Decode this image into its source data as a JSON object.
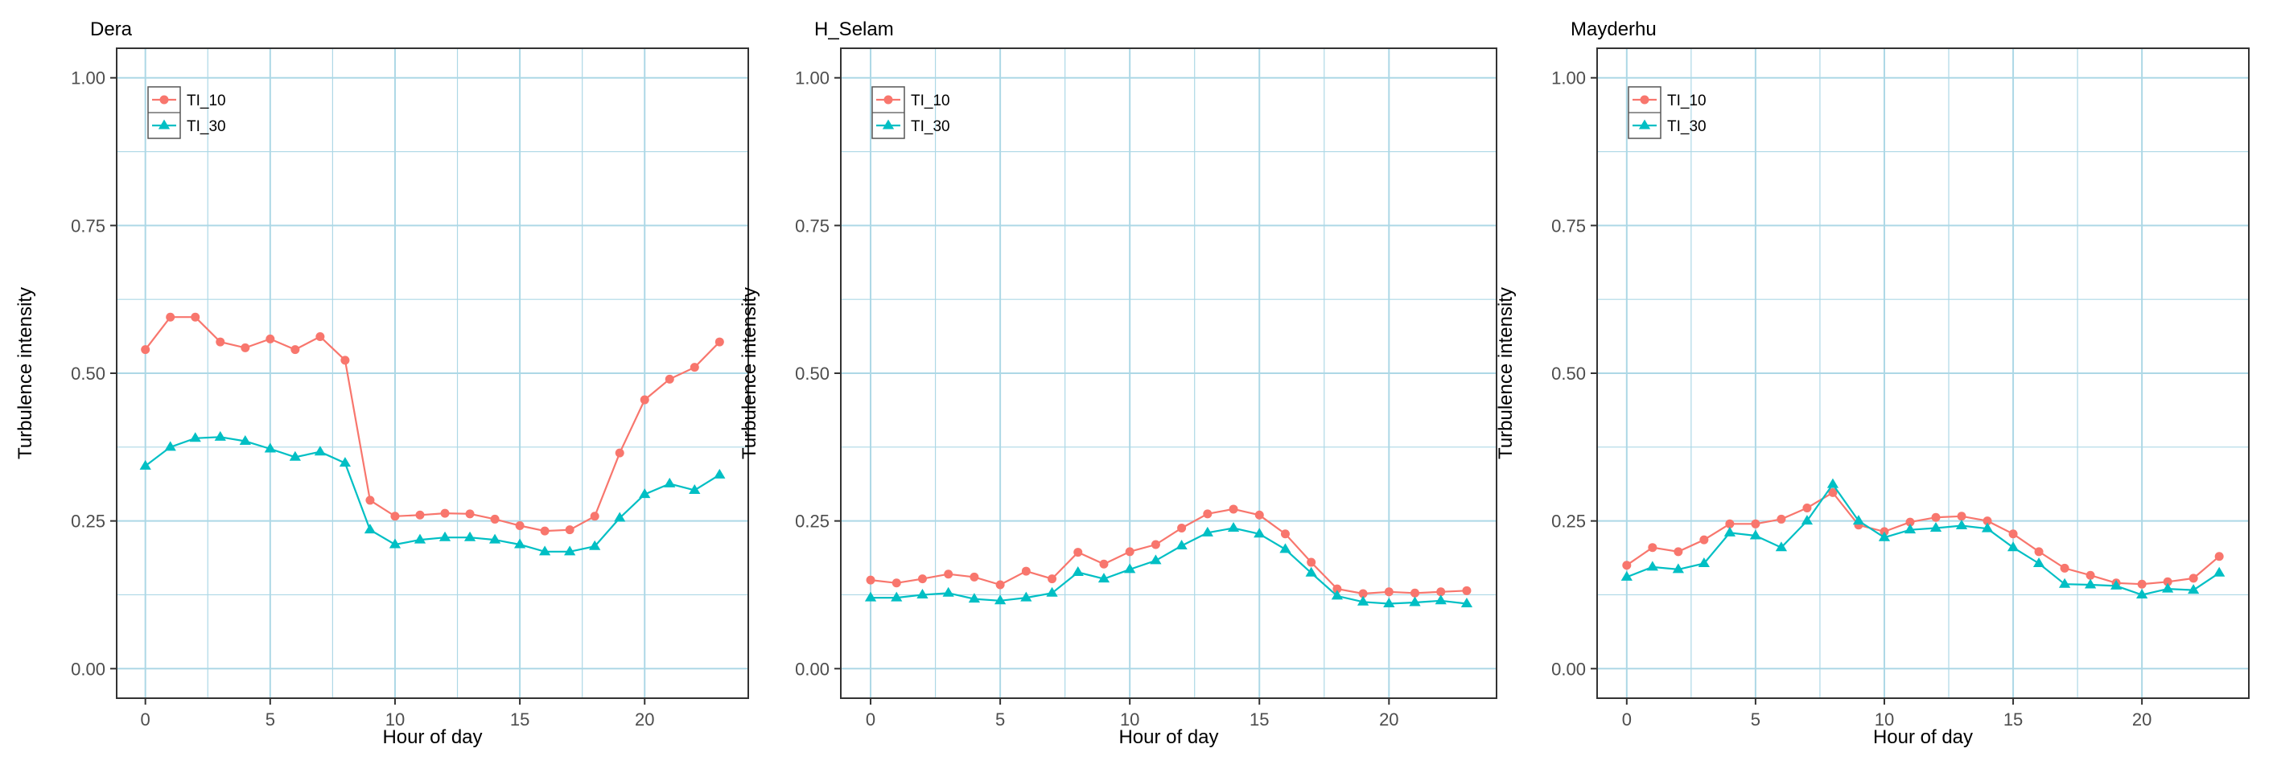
{
  "chart_data": [
    {
      "type": "line",
      "title": "Dera",
      "xlabel": "Hour of day",
      "ylabel": "Turbulence intensity",
      "xlim": [
        -1.15,
        24.15
      ],
      "ylim": [
        -0.05,
        1.05
      ],
      "x_ticks": [
        0,
        5,
        10,
        15,
        20
      ],
      "y_ticks": [
        0.0,
        0.25,
        0.5,
        0.75,
        1.0
      ],
      "y_tick_labels": [
        "0.00",
        "0.25",
        "0.50",
        "0.75",
        "1.00"
      ],
      "grid": true,
      "legend_position": "top-left",
      "x": [
        0,
        1,
        2,
        3,
        4,
        5,
        6,
        7,
        8,
        9,
        10,
        11,
        12,
        13,
        14,
        15,
        16,
        17,
        18,
        19,
        20,
        21,
        22,
        23
      ],
      "series": [
        {
          "name": "TI_10",
          "color": "#F8766D",
          "marker": "circle",
          "values": [
            0.54,
            0.595,
            0.595,
            0.553,
            0.543,
            0.558,
            0.54,
            0.562,
            0.522,
            0.285,
            0.258,
            0.26,
            0.263,
            0.262,
            0.253,
            0.242,
            0.233,
            0.235,
            0.258,
            0.365,
            0.455,
            0.49,
            0.51,
            0.553
          ]
        },
        {
          "name": "TI_30",
          "color": "#00BFC4",
          "marker": "triangle",
          "values": [
            0.343,
            0.375,
            0.39,
            0.392,
            0.385,
            0.372,
            0.358,
            0.367,
            0.348,
            0.235,
            0.21,
            0.218,
            0.222,
            0.222,
            0.218,
            0.21,
            0.198,
            0.198,
            0.207,
            0.255,
            0.295,
            0.313,
            0.302,
            0.328
          ]
        }
      ]
    },
    {
      "type": "line",
      "title": "H_Selam",
      "xlabel": "Hour of day",
      "ylabel": "Turbulence intensity",
      "xlim": [
        -1.15,
        24.15
      ],
      "ylim": [
        -0.05,
        1.05
      ],
      "x_ticks": [
        0,
        5,
        10,
        15,
        20
      ],
      "y_ticks": [
        0.0,
        0.25,
        0.5,
        0.75,
        1.0
      ],
      "y_tick_labels": [
        "0.00",
        "0.25",
        "0.50",
        "0.75",
        "1.00"
      ],
      "grid": true,
      "legend_position": "top-left",
      "x": [
        0,
        1,
        2,
        3,
        4,
        5,
        6,
        7,
        8,
        9,
        10,
        11,
        12,
        13,
        14,
        15,
        16,
        17,
        18,
        19,
        20,
        21,
        22,
        23
      ],
      "series": [
        {
          "name": "TI_10",
          "color": "#F8766D",
          "marker": "circle",
          "values": [
            0.15,
            0.145,
            0.152,
            0.16,
            0.155,
            0.142,
            0.165,
            0.152,
            0.197,
            0.177,
            0.198,
            0.21,
            0.238,
            0.262,
            0.27,
            0.26,
            0.228,
            0.18,
            0.135,
            0.127,
            0.13,
            0.128,
            0.13,
            0.132
          ]
        },
        {
          "name": "TI_30",
          "color": "#00BFC4",
          "marker": "triangle",
          "values": [
            0.12,
            0.12,
            0.125,
            0.128,
            0.118,
            0.115,
            0.12,
            0.128,
            0.163,
            0.152,
            0.168,
            0.183,
            0.208,
            0.23,
            0.238,
            0.228,
            0.202,
            0.162,
            0.123,
            0.113,
            0.11,
            0.112,
            0.115,
            0.11
          ]
        }
      ]
    },
    {
      "type": "line",
      "title": "Mayderhu",
      "xlabel": "Hour of day",
      "ylabel": "Turbulence intensity",
      "xlim": [
        -1.15,
        24.15
      ],
      "ylim": [
        -0.05,
        1.05
      ],
      "x_ticks": [
        0,
        5,
        10,
        15,
        20
      ],
      "y_ticks": [
        0.0,
        0.25,
        0.5,
        0.75,
        1.0
      ],
      "y_tick_labels": [
        "0.00",
        "0.25",
        "0.50",
        "0.75",
        "1.00"
      ],
      "grid": true,
      "legend_position": "top-left",
      "x": [
        0,
        1,
        2,
        3,
        4,
        5,
        6,
        7,
        8,
        9,
        10,
        11,
        12,
        13,
        14,
        15,
        16,
        17,
        18,
        19,
        20,
        21,
        22,
        23
      ],
      "series": [
        {
          "name": "TI_10",
          "color": "#F8766D",
          "marker": "circle",
          "values": [
            0.175,
            0.205,
            0.198,
            0.218,
            0.245,
            0.245,
            0.253,
            0.272,
            0.298,
            0.243,
            0.232,
            0.248,
            0.256,
            0.258,
            0.25,
            0.228,
            0.198,
            0.17,
            0.158,
            0.145,
            0.143,
            0.147,
            0.153,
            0.19
          ]
        },
        {
          "name": "TI_30",
          "color": "#00BFC4",
          "marker": "triangle",
          "values": [
            0.155,
            0.172,
            0.168,
            0.178,
            0.23,
            0.225,
            0.205,
            0.25,
            0.312,
            0.25,
            0.222,
            0.235,
            0.238,
            0.242,
            0.237,
            0.205,
            0.178,
            0.143,
            0.142,
            0.14,
            0.125,
            0.135,
            0.133,
            0.162
          ]
        }
      ]
    }
  ]
}
